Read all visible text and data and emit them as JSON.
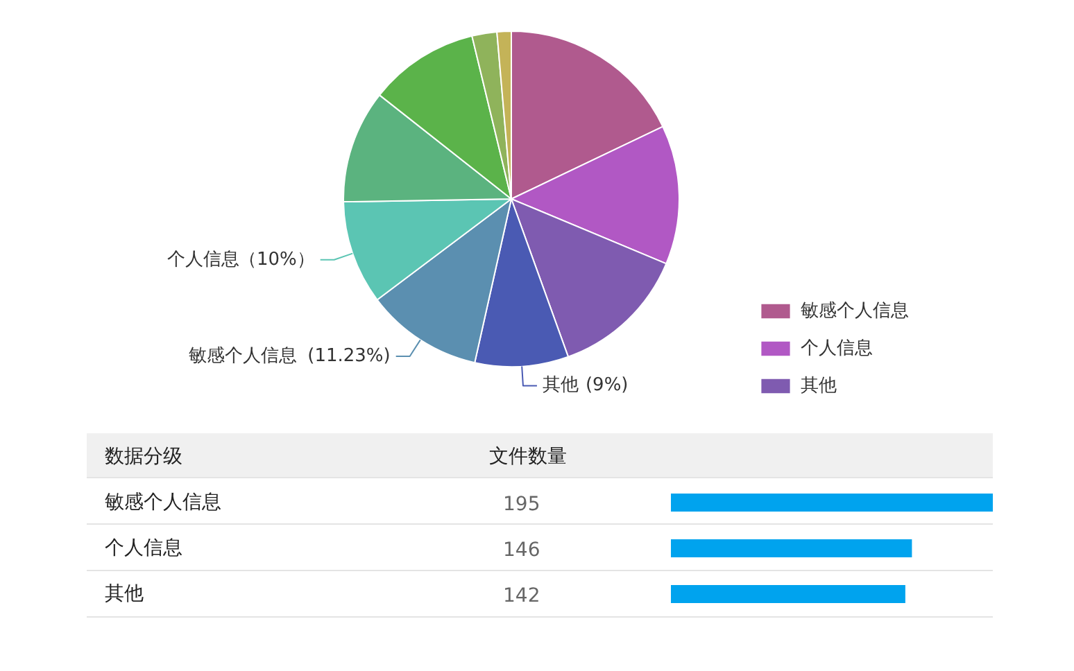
{
  "chart_data": [
    {
      "type": "pie",
      "categories": [
        "敏感个人信息",
        "个人信息",
        "其他",
        "其他",
        "敏感个人信息",
        "个人信息",
        null,
        null,
        null,
        null
      ],
      "values": [
        17.9,
        13.4,
        13.2,
        9,
        11.23,
        10,
        10.9,
        10.6,
        2.4,
        1.37
      ],
      "colors": [
        "#b05a8e",
        "#b158c4",
        "#7f5bb0",
        "#4a5ab3",
        "#5b8fb0",
        "#5bc5b3",
        "#5bb37f",
        "#5bb34a",
        "#8fb35b",
        "#c4b358"
      ],
      "value_labels": [
        null,
        null,
        null,
        "(9%)",
        "(11.23%)",
        "（10%）",
        null,
        null,
        null,
        null
      ],
      "legend": "bottom right"
    },
    {
      "type": "bar",
      "orientation": "horizontal",
      "ylabel": "数据分级",
      "xlabel": "文件数量",
      "categories": [
        "敏感个人信息",
        "个人信息",
        "其他"
      ],
      "values": [
        195,
        146,
        142
      ],
      "color": "#00a3ee",
      "data_labels": true
    }
  ]
}
